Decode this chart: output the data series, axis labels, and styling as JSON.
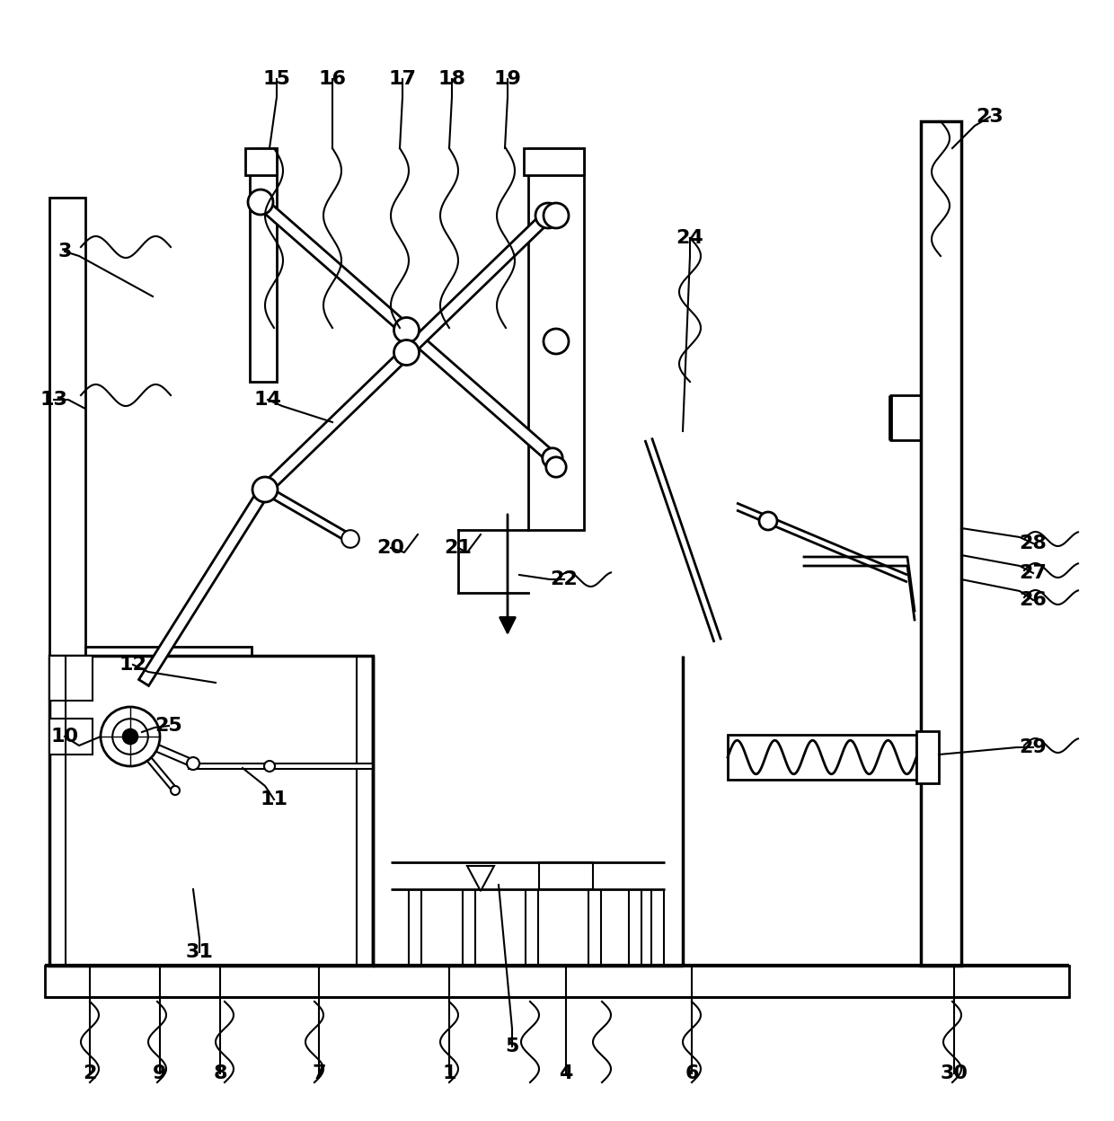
{
  "bg_color": "#ffffff",
  "line_color": "#000000",
  "line_width": 2.0,
  "label_fontsize": 16,
  "label_fontweight": "bold",
  "wavy_lw": 1.5
}
